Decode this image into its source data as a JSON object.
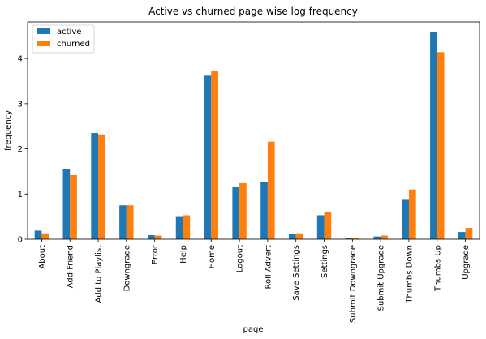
{
  "chart_data": {
    "type": "bar",
    "title": "Active vs churned page wise log frequency",
    "xlabel": "page",
    "ylabel": "frequency",
    "categories": [
      "About",
      "Add Friend",
      "Add to Playlist",
      "Downgrade",
      "Error",
      "Help",
      "Home",
      "Logout",
      "Roll Advert",
      "Save Settings",
      "Settings",
      "Submit Downgrade",
      "Submit Upgrade",
      "Thumbs Down",
      "Thumbs Up",
      "Upgrade"
    ],
    "series": [
      {
        "name": "active",
        "color": "#1f77b4",
        "values": [
          0.19,
          1.55,
          2.35,
          0.75,
          0.09,
          0.51,
          3.62,
          1.15,
          1.27,
          0.11,
          0.53,
          0.02,
          0.06,
          0.89,
          4.58,
          0.16
        ]
      },
      {
        "name": "churned",
        "color": "#ff7f0e",
        "values": [
          0.13,
          1.42,
          2.32,
          0.75,
          0.08,
          0.53,
          3.72,
          1.24,
          2.16,
          0.13,
          0.61,
          0.02,
          0.08,
          1.1,
          4.14,
          0.25
        ]
      }
    ],
    "ylim": [
      0,
      4.81
    ],
    "yticks": [
      "0",
      "1",
      "2",
      "3",
      "4"
    ],
    "legend_position": "upper-left",
    "grid": false
  }
}
